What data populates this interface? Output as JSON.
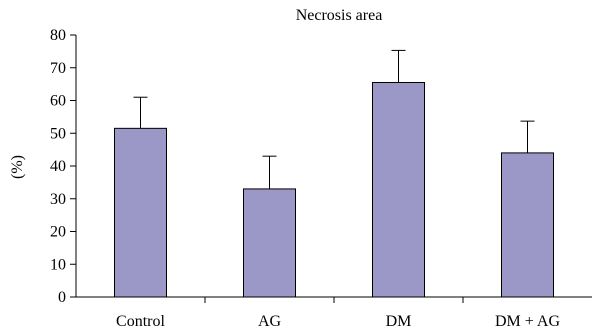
{
  "chart_data": {
    "type": "bar",
    "title": "Necrosis area",
    "xlabel": "",
    "ylabel": "(%)",
    "categories": [
      "Control",
      "AG",
      "DM",
      "DM + AG"
    ],
    "values": [
      51.5,
      33,
      65.5,
      44
    ],
    "error_upper": [
      61,
      43,
      75.3,
      53.7
    ],
    "ylim": [
      0,
      80
    ],
    "yticks": [
      0,
      10,
      20,
      30,
      40,
      50,
      60,
      70,
      80
    ],
    "bar_color": "#9b97c6",
    "grid": false,
    "legend": "none"
  }
}
